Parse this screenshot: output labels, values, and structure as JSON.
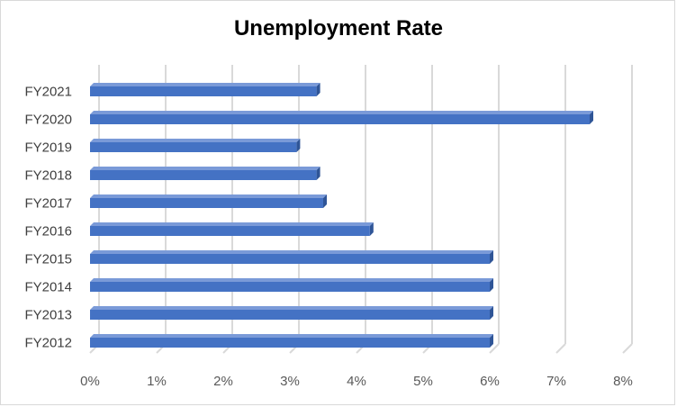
{
  "chart_data": {
    "type": "bar",
    "orientation": "horizontal",
    "title": "Unemployment Rate",
    "categories": [
      "FY2012",
      "FY2013",
      "FY2014",
      "FY2015",
      "FY2016",
      "FY2017",
      "FY2018",
      "FY2019",
      "FY2020",
      "FY2021"
    ],
    "values": [
      6.0,
      6.0,
      6.0,
      6.0,
      4.2,
      3.5,
      3.4,
      3.1,
      7.5,
      3.4
    ],
    "value_unit": "percent",
    "xlim": [
      0,
      8
    ],
    "xticks": [
      "0%",
      "1%",
      "2%",
      "3%",
      "4%",
      "5%",
      "6%",
      "7%",
      "8%"
    ],
    "grid": true,
    "legend": "none",
    "style": "3d-bar",
    "colors": {
      "bar_front": "#4472c4",
      "bar_top": "#7a9ad8",
      "bar_side": "#2f5597",
      "grid": "#d9d9d9"
    }
  }
}
